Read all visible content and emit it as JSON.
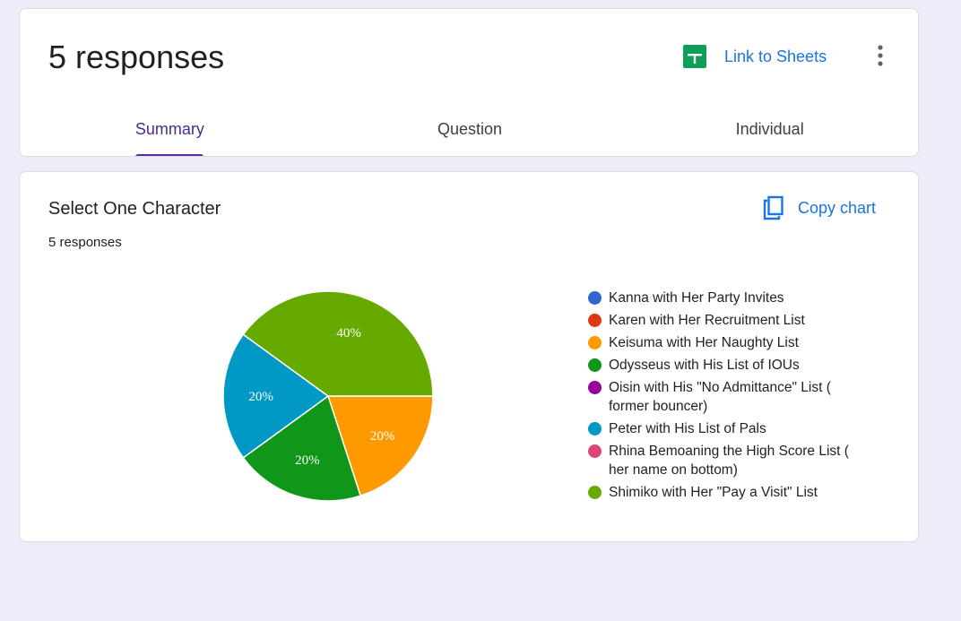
{
  "header": {
    "title": "5 responses",
    "sheets_label": "Link to Sheets",
    "tabs": [
      {
        "label": "Summary",
        "active": true
      },
      {
        "label": "Question",
        "active": false
      },
      {
        "label": "Individual",
        "active": false
      }
    ]
  },
  "question": {
    "title": "Select One Character",
    "responses": "5 responses",
    "copy_label": "Copy chart"
  },
  "colors": {
    "accent": "#1a73e8",
    "tab_active": "#5b2aa0",
    "sheets_green": "#0f9d58"
  },
  "chart_data": {
    "type": "pie",
    "title": "Select One Character",
    "slices": [
      {
        "label": "Kanna with Her Party Invites",
        "value": 0,
        "color": "#3366cc"
      },
      {
        "label": "Karen with Her Recruitment List",
        "value": 0,
        "color": "#dc3912"
      },
      {
        "label": "Keisuma with Her Naughty List",
        "value": 1,
        "color": "#ff9900"
      },
      {
        "label": "Odysseus with His List of IOUs",
        "value": 1,
        "color": "#109618"
      },
      {
        "label": "Oisin with His \"No Admittance\" List ( former bouncer)",
        "value": 0,
        "color": "#990099"
      },
      {
        "label": "Peter with His List of Pals",
        "value": 1,
        "color": "#0099c6"
      },
      {
        "label": "Rhina Bemoaning the High Score List ( her name on bottom)",
        "value": 0,
        "color": "#dd4477"
      },
      {
        "label": "Shimiko with Her \"Pay a Visit\" List",
        "value": 2,
        "color": "#66aa00"
      }
    ],
    "data_labels": [
      "20%",
      "20%",
      "20%",
      "40%"
    ],
    "legend_position": "right"
  }
}
